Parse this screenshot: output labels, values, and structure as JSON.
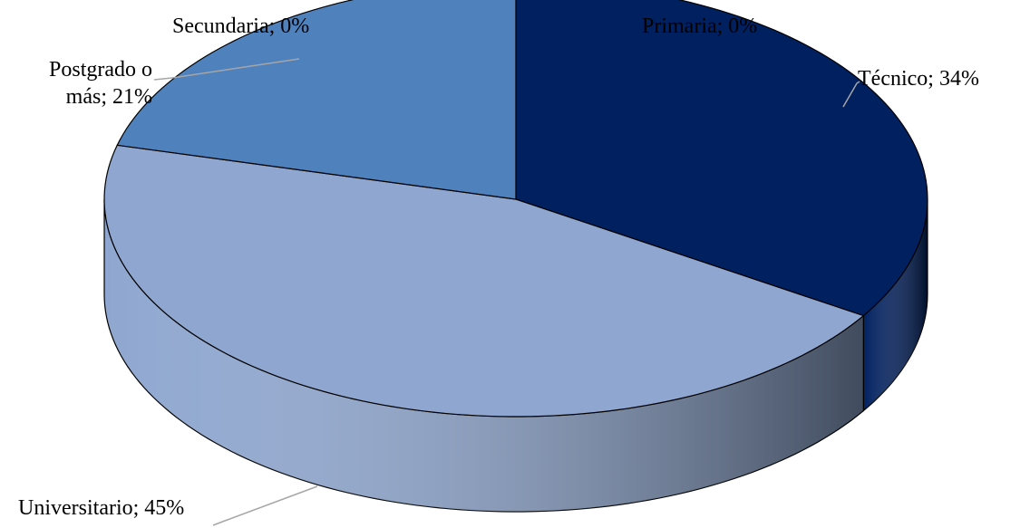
{
  "chart_data": {
    "type": "pie3d",
    "categories": [
      "Primaria",
      "Técnico",
      "Universitario",
      "Postgrado o más",
      "Secundaria"
    ],
    "values": [
      0,
      34,
      45,
      21,
      0
    ],
    "value_labels": [
      "; 0%",
      "; 34%",
      "; 45%",
      "; 21%",
      "; 0%"
    ],
    "colors": [
      "#1f3864",
      "#002060",
      "#8fa7d0",
      "#4f81bd",
      "#2e5597"
    ]
  }
}
